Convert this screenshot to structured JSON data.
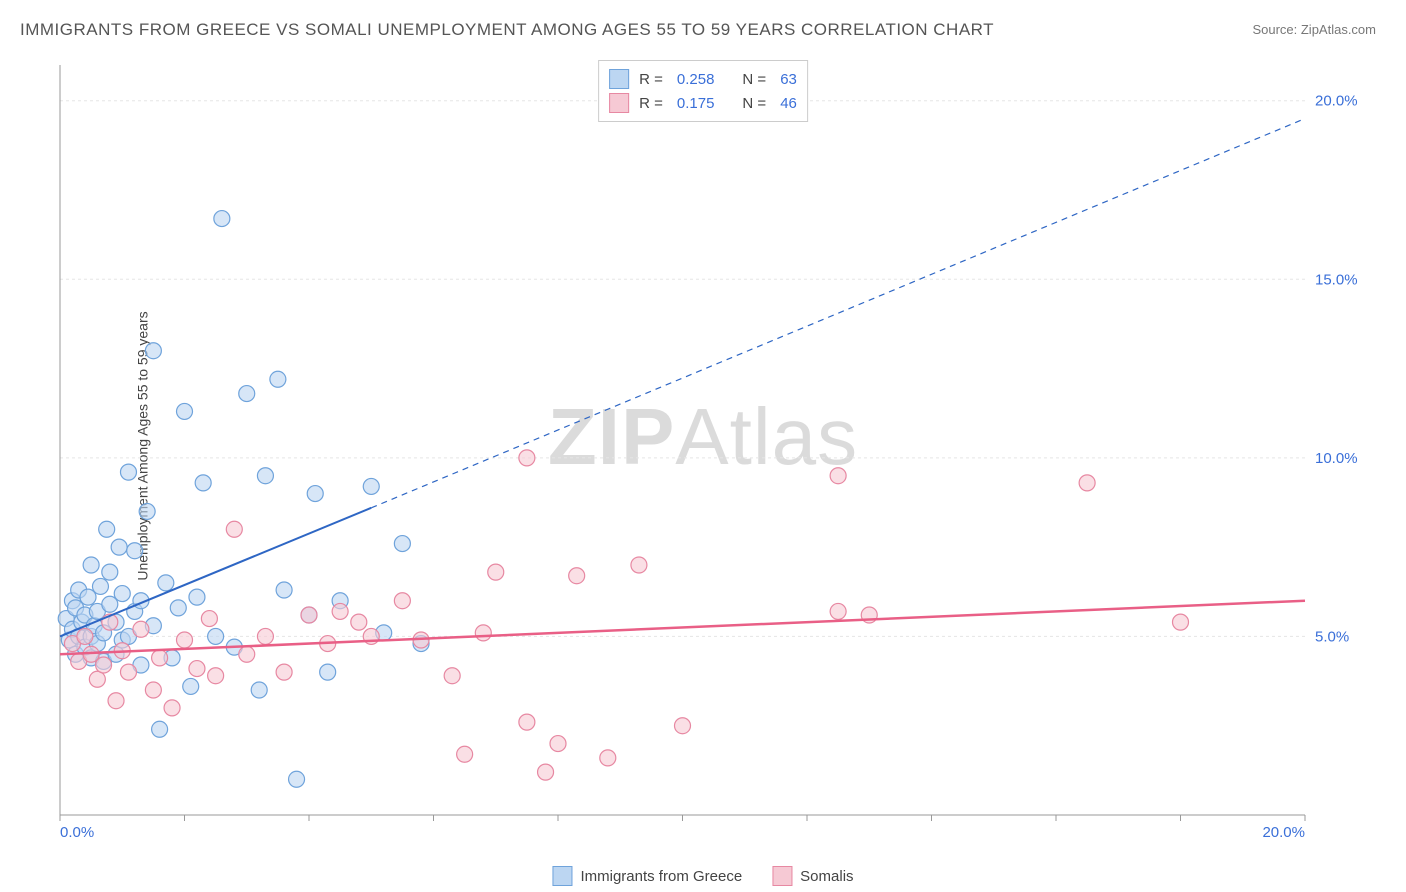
{
  "title": "IMMIGRANTS FROM GREECE VS SOMALI UNEMPLOYMENT AMONG AGES 55 TO 59 YEARS CORRELATION CHART",
  "source_prefix": "Source: ",
  "source_link": "ZipAtlas.com",
  "y_axis_label": "Unemployment Among Ages 55 to 59 years",
  "watermark": "ZIPAtlas",
  "chart": {
    "type": "scatter",
    "xlim": [
      0,
      20
    ],
    "ylim": [
      0,
      21
    ],
    "x_ticks": [
      0,
      2,
      4,
      6,
      8,
      10,
      12,
      14,
      16,
      18,
      20
    ],
    "x_tick_labels_shown": {
      "0": "0.0%",
      "20": "20.0%"
    },
    "y_ticks": [
      5,
      10,
      15,
      20
    ],
    "y_tick_labels": {
      "5": "5.0%",
      "10": "10.0%",
      "15": "15.0%",
      "20": "20.0%"
    },
    "grid_color": "#e5e5e5",
    "axis_color": "#999999",
    "label_color": "#3a6fd8",
    "background_color": "#ffffff",
    "marker_radius": 8,
    "marker_stroke_width": 1.2,
    "series": [
      {
        "name": "Immigrants from Greece",
        "fill": "#bcd6f2",
        "stroke": "#6fa3db",
        "fill_opacity": 0.6,
        "R": "0.258",
        "N": "63",
        "regression": {
          "solid": {
            "x1": 0,
            "y1": 5.0,
            "x2": 5.0,
            "y2": 8.6
          },
          "dashed": {
            "x1": 5.0,
            "y1": 8.6,
            "x2": 20,
            "y2": 19.5
          },
          "color": "#2e66c4",
          "width": 2
        },
        "points": [
          [
            0.1,
            5.5
          ],
          [
            0.15,
            4.9
          ],
          [
            0.2,
            5.2
          ],
          [
            0.2,
            6.0
          ],
          [
            0.25,
            4.5
          ],
          [
            0.25,
            5.8
          ],
          [
            0.3,
            5.0
          ],
          [
            0.3,
            6.3
          ],
          [
            0.35,
            5.4
          ],
          [
            0.4,
            4.7
          ],
          [
            0.4,
            5.6
          ],
          [
            0.45,
            6.1
          ],
          [
            0.5,
            4.4
          ],
          [
            0.5,
            5.0
          ],
          [
            0.5,
            7.0
          ],
          [
            0.55,
            5.3
          ],
          [
            0.6,
            4.8
          ],
          [
            0.6,
            5.7
          ],
          [
            0.65,
            6.4
          ],
          [
            0.7,
            4.3
          ],
          [
            0.7,
            5.1
          ],
          [
            0.75,
            8.0
          ],
          [
            0.8,
            5.9
          ],
          [
            0.8,
            6.8
          ],
          [
            0.9,
            4.5
          ],
          [
            0.9,
            5.4
          ],
          [
            0.95,
            7.5
          ],
          [
            1.0,
            4.9
          ],
          [
            1.0,
            6.2
          ],
          [
            1.1,
            5.0
          ],
          [
            1.1,
            9.6
          ],
          [
            1.2,
            5.7
          ],
          [
            1.2,
            7.4
          ],
          [
            1.3,
            4.2
          ],
          [
            1.3,
            6.0
          ],
          [
            1.4,
            8.5
          ],
          [
            1.5,
            5.3
          ],
          [
            1.5,
            13.0
          ],
          [
            1.6,
            2.4
          ],
          [
            1.7,
            6.5
          ],
          [
            1.8,
            4.4
          ],
          [
            1.9,
            5.8
          ],
          [
            2.0,
            11.3
          ],
          [
            2.1,
            3.6
          ],
          [
            2.2,
            6.1
          ],
          [
            2.3,
            9.3
          ],
          [
            2.5,
            5.0
          ],
          [
            2.6,
            16.7
          ],
          [
            2.8,
            4.7
          ],
          [
            3.0,
            11.8
          ],
          [
            3.2,
            3.5
          ],
          [
            3.3,
            9.5
          ],
          [
            3.5,
            12.2
          ],
          [
            3.6,
            6.3
          ],
          [
            3.8,
            1.0
          ],
          [
            4.0,
            5.6
          ],
          [
            4.1,
            9.0
          ],
          [
            4.3,
            4.0
          ],
          [
            4.5,
            6.0
          ],
          [
            5.0,
            9.2
          ],
          [
            5.2,
            5.1
          ],
          [
            5.5,
            7.6
          ],
          [
            5.8,
            4.8
          ]
        ]
      },
      {
        "name": "Somalis",
        "fill": "#f6c9d4",
        "stroke": "#e788a2",
        "fill_opacity": 0.6,
        "R": "0.175",
        "N": "46",
        "regression": {
          "solid": {
            "x1": 0,
            "y1": 4.5,
            "x2": 20,
            "y2": 6.0
          },
          "dashed": null,
          "color": "#e95f86",
          "width": 2.5
        },
        "points": [
          [
            0.2,
            4.8
          ],
          [
            0.3,
            4.3
          ],
          [
            0.4,
            5.0
          ],
          [
            0.5,
            4.5
          ],
          [
            0.6,
            3.8
          ],
          [
            0.7,
            4.2
          ],
          [
            0.8,
            5.4
          ],
          [
            0.9,
            3.2
          ],
          [
            1.0,
            4.6
          ],
          [
            1.1,
            4.0
          ],
          [
            1.3,
            5.2
          ],
          [
            1.5,
            3.5
          ],
          [
            1.6,
            4.4
          ],
          [
            1.8,
            3.0
          ],
          [
            2.0,
            4.9
          ],
          [
            2.2,
            4.1
          ],
          [
            2.4,
            5.5
          ],
          [
            2.5,
            3.9
          ],
          [
            2.8,
            8.0
          ],
          [
            3.0,
            4.5
          ],
          [
            3.3,
            5.0
          ],
          [
            3.6,
            4.0
          ],
          [
            4.0,
            5.6
          ],
          [
            4.3,
            4.8
          ],
          [
            4.5,
            5.7
          ],
          [
            4.8,
            5.4
          ],
          [
            5.0,
            5.0
          ],
          [
            5.5,
            6.0
          ],
          [
            5.8,
            4.9
          ],
          [
            6.3,
            3.9
          ],
          [
            6.5,
            1.7
          ],
          [
            6.8,
            5.1
          ],
          [
            7.0,
            6.8
          ],
          [
            7.5,
            2.6
          ],
          [
            7.5,
            10.0
          ],
          [
            7.8,
            1.2
          ],
          [
            8.0,
            2.0
          ],
          [
            8.3,
            6.7
          ],
          [
            8.8,
            1.6
          ],
          [
            9.3,
            7.0
          ],
          [
            10.0,
            2.5
          ],
          [
            12.5,
            5.7
          ],
          [
            12.5,
            9.5
          ],
          [
            13.0,
            5.6
          ],
          [
            16.5,
            9.3
          ],
          [
            18.0,
            5.4
          ]
        ]
      }
    ],
    "legend_bottom": [
      {
        "label": "Immigrants from Greece",
        "fill": "#bcd6f2",
        "stroke": "#6fa3db"
      },
      {
        "label": "Somalis",
        "fill": "#f6c9d4",
        "stroke": "#e788a2"
      }
    ]
  }
}
